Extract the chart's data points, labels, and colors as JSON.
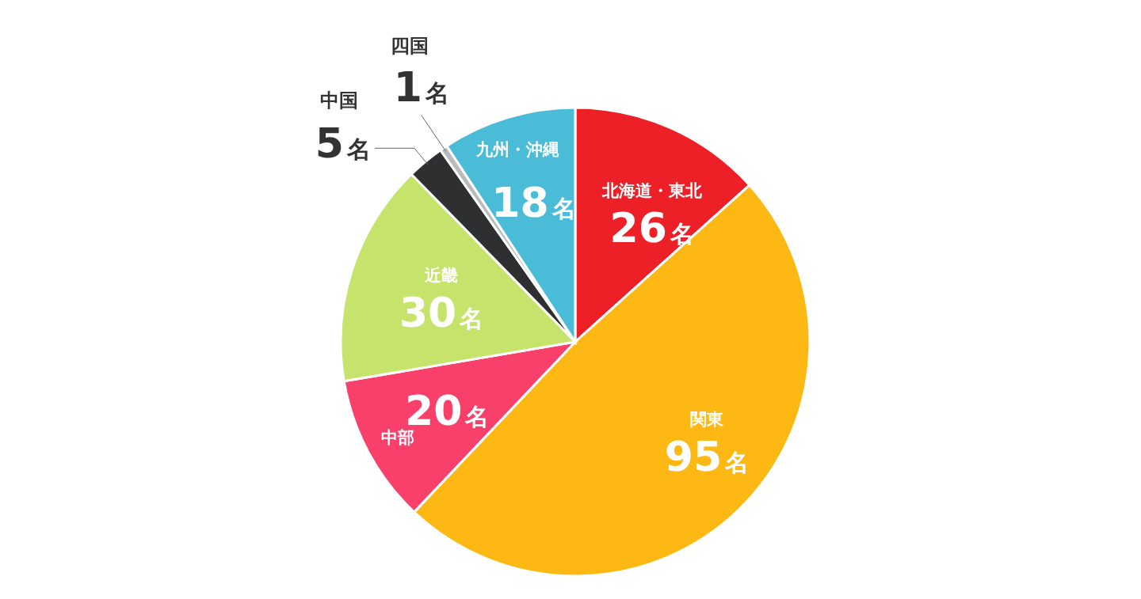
{
  "chart_data": {
    "type": "pie",
    "categories": [
      "北海道・東北",
      "関東",
      "中部",
      "近畿",
      "中国",
      "四国",
      "九州・沖縄"
    ],
    "values": [
      26,
      95,
      20,
      30,
      5,
      1,
      18
    ],
    "colors": [
      "#ed2027",
      "#fdb813",
      "#f9406a",
      "#c6e46c",
      "#2d2f31",
      "#b9babc",
      "#4bbcd8"
    ],
    "value_labels": [
      "26名",
      "95名",
      "20名",
      "30名",
      "5名",
      "1名",
      "18名"
    ]
  }
}
